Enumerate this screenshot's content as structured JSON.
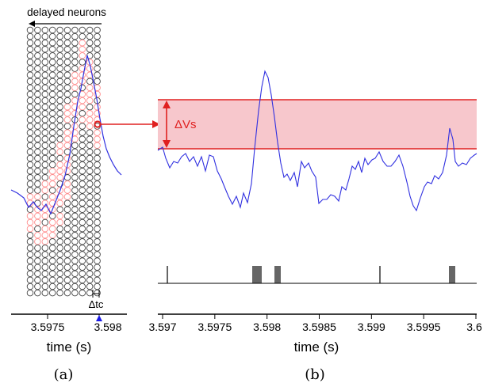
{
  "panel_a": {
    "top_label": "delayed neurons",
    "delta_tc_label": "Δtc",
    "ticks": [
      "3.5975",
      "3.598"
    ],
    "xlabel": "time (s)",
    "caption": "(a)",
    "grid": {
      "columns": 10,
      "rows": 42
    }
  },
  "panel_b": {
    "delta_vs_label": "ΔVs",
    "ticks": [
      "3.597",
      "3.5975",
      "3.598",
      "3.5985",
      "3.599",
      "3.5995",
      "3.6"
    ],
    "xlabel": "time (s)",
    "caption": "(b)"
  },
  "colors": {
    "trace": "#3030e0",
    "highlight": "#e02020",
    "band_fill": "#f7c7cc",
    "neuron": "#444444",
    "active_neuron": "#ff8c8c",
    "marker": "#1a1ae6"
  }
}
